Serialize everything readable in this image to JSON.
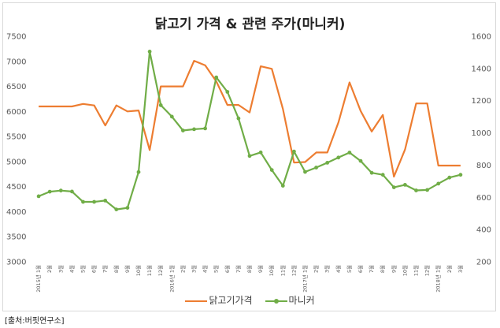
{
  "title": "닭고기 가격 & 관련 주가(마니커)",
  "source": "[출처:버핏연구소]",
  "chart_data": {
    "type": "line",
    "title": "닭고기 가격 & 관련 주가(마니커)",
    "categories": [
      "2015년 1월",
      "2월",
      "3월",
      "4월",
      "5월",
      "6월",
      "7월",
      "8월",
      "9월",
      "10월",
      "11월",
      "12월",
      "2016년 1월",
      "2월",
      "3월",
      "4월",
      "5월",
      "6월",
      "7월",
      "8월",
      "9월",
      "10월",
      "11월",
      "12월",
      "2017년 1월",
      "2월",
      "3월",
      "4월",
      "5월",
      "6월",
      "7월",
      "8월",
      "9월",
      "10월",
      "11월",
      "12월",
      "2018년 1월",
      "2월",
      "3월"
    ],
    "y_left": {
      "min": 3000,
      "max": 7500,
      "step": 500
    },
    "y_right": {
      "min": 200,
      "max": 1600,
      "step": 200
    },
    "grid": false,
    "legend_position": "bottom",
    "series": [
      {
        "name": "닭고기가격",
        "axis": "left",
        "color": "#ED7D31",
        "marker": false,
        "values": [
          6100,
          6100,
          6100,
          6100,
          6150,
          6120,
          5720,
          6120,
          6000,
          6020,
          5230,
          6500,
          6500,
          6500,
          7010,
          6920,
          6600,
          6130,
          6130,
          5980,
          6900,
          6850,
          6050,
          4980,
          4990,
          5180,
          5180,
          5780,
          6580,
          6010,
          5600,
          5930,
          4700,
          5240,
          6160,
          6160,
          4920,
          4920,
          4920
        ]
      },
      {
        "name": "마니커",
        "axis": "right",
        "color": "#70AD47",
        "marker": true,
        "values": [
          607,
          635,
          642,
          636,
          572,
          572,
          580,
          525,
          535,
          757,
          1505,
          1172,
          1101,
          1015,
          1023,
          1028,
          1345,
          1255,
          1090,
          857,
          879,
          770,
          672,
          885,
          758,
          785,
          815,
          847,
          878,
          826,
          752,
          740,
          662,
          678,
          643,
          646,
          685,
          723,
          740
        ]
      }
    ]
  }
}
